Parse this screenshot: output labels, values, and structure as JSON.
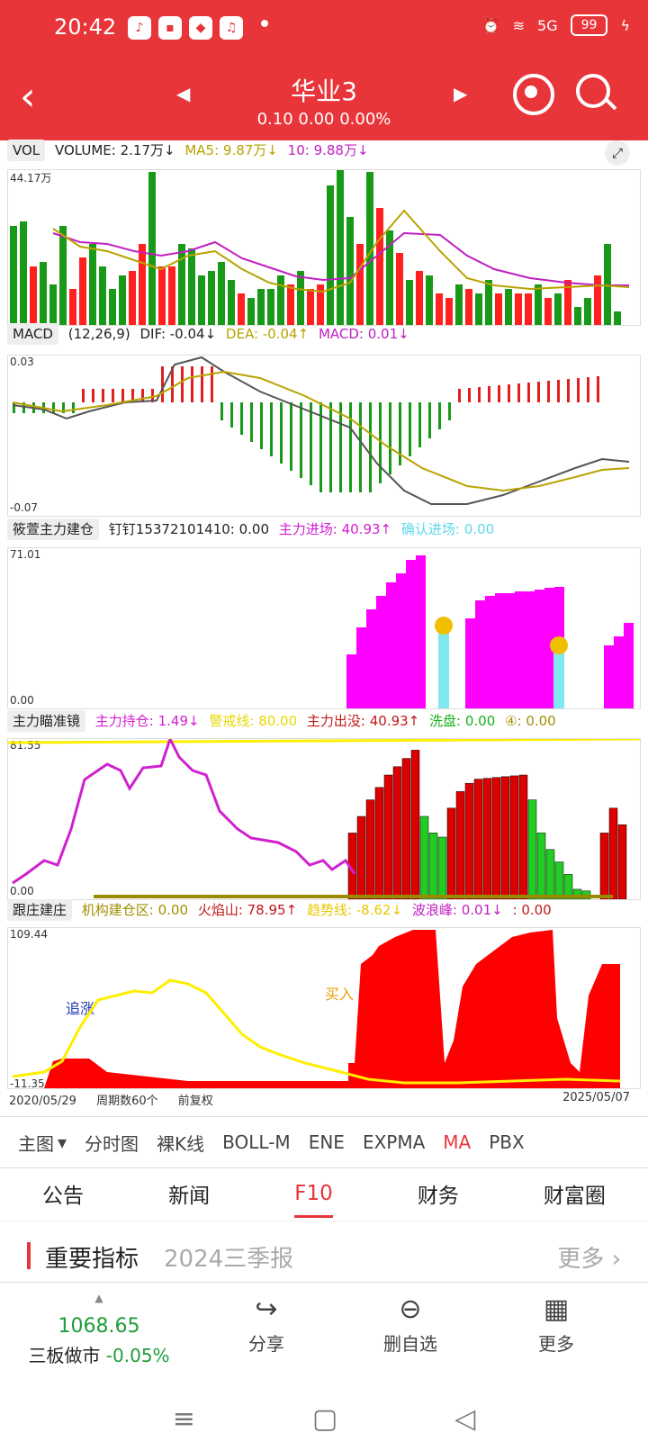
{
  "status": {
    "time": "20:42",
    "battery": "99",
    "net": "5G"
  },
  "header": {
    "title": "华业3",
    "subtitle": "0.10 0.00 0.00%"
  },
  "vol": {
    "ind": "VOL",
    "volume": "VOLUME: 2.17万↓",
    "ma5": "MA5: 9.87万↓",
    "ma10": "10: 9.88万↓",
    "top": "44.17万"
  },
  "macd": {
    "ind": "MACD",
    "param": "(12,26,9)",
    "dif": "DIF: -0.04↓",
    "dea": "DEA: -0.04↑",
    "macd": "MACD: 0.01↓",
    "top": "0.03",
    "bottom": "-0.07"
  },
  "p3": {
    "ind": "筱萱主力建仓",
    "a": "钉钉15372101410: 0.00",
    "b": "主力进场: 40.93↑",
    "c": "确认进场: 0.00",
    "top": "71.01",
    "bottom": "0.00"
  },
  "p4": {
    "ind": "主力瞄准镜",
    "a": "主力持仓: 1.49↓",
    "b": "警戒线: 80.00",
    "c": "主力出没: 40.93↑",
    "d": "洗盘: 0.00",
    "e": "④: 0.00",
    "top": "81.55",
    "bottom": "0.00"
  },
  "p5": {
    "ind": "跟庄建庄",
    "a": "机构建仓区: 0.00",
    "b": "火焰山: 78.95↑",
    "c": "趋势线: -8.62↓",
    "d": "波浪峰: 0.01↓",
    "e": ": 0.00",
    "top": "109.44",
    "bottom": "-11.35",
    "label1": "追涨",
    "label2": "买入"
  },
  "axis": {
    "start": "2020/05/29",
    "period": "周期数60个",
    "adj": "前复权",
    "end": "2025/05/07"
  },
  "tabs1": [
    "主图",
    "分时图",
    "裸K线",
    "BOLL-M",
    "ENE",
    "EXPMA",
    "MA",
    "PBX"
  ],
  "tabs2": [
    "公告",
    "新闻",
    "F10",
    "财务",
    "财富圈"
  ],
  "section": {
    "name": "重要指标",
    "period": "2024三季报",
    "more": "更多"
  },
  "bottom": {
    "value": "1068.65",
    "name": "三板做市",
    "change": "-0.05%",
    "share": "分享",
    "remove": "删自选",
    "more": "更多"
  }
}
